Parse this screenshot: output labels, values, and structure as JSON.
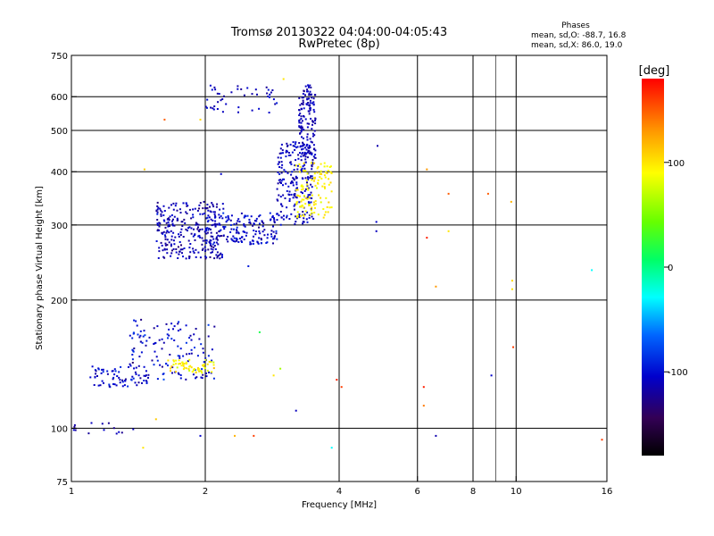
{
  "chart_data": {
    "type": "scatter",
    "title": "Tromsø 20130322 04:04:00-04:05:43",
    "subtitle": "RwPretec (8p)",
    "xlabel": "Frequency [MHz]",
    "ylabel": "Stationary phase Virtual Height [km]",
    "x_scale": "log",
    "y_scale": "log",
    "xlim": [
      1,
      16
    ],
    "ylim": [
      75,
      750
    ],
    "x_ticks": [
      1,
      2,
      4,
      6,
      8,
      10,
      16
    ],
    "x_tick_labels": [
      "1",
      "2",
      "4",
      "6",
      "8",
      "10",
      "16"
    ],
    "x_grid": [
      2,
      4,
      6,
      8,
      10
    ],
    "x_minor_grid": [
      9
    ],
    "y_ticks": [
      75,
      100,
      200,
      300,
      400,
      500,
      600,
      750
    ],
    "y_tick_labels": [
      "75",
      "100",
      "200",
      "300",
      "400",
      "500",
      "600",
      "750"
    ],
    "y_grid": [
      100,
      200,
      300,
      400,
      500,
      600
    ],
    "grid": true,
    "stats": {
      "heading": "Phases",
      "line_o": "mean, sd,O: -88.7, 16.8",
      "line_x": "mean, sd,X:  86.0, 19.0"
    },
    "colorbar": {
      "label": "[deg]",
      "range": [
        -180,
        180
      ],
      "ticks": [
        100,
        0,
        -100
      ],
      "tick_labels": [
        "100",
        "0",
        "-100"
      ]
    },
    "clusters": [
      {
        "x": [
          1.55,
          2.2
        ],
        "y": [
          250,
          340
        ],
        "n": 280,
        "phase": -110,
        "phase_sd": 18
      },
      {
        "x": [
          2.0,
          2.9
        ],
        "y": [
          270,
          320
        ],
        "n": 160,
        "phase": -100,
        "phase_sd": 18
      },
      {
        "x": [
          2.9,
          3.5
        ],
        "y": [
          300,
          470
        ],
        "n": 220,
        "phase": -105,
        "phase_sd": 15
      },
      {
        "x": [
          3.25,
          3.55
        ],
        "y": [
          430,
          640
        ],
        "n": 140,
        "phase": -108,
        "phase_sd": 12
      },
      {
        "x": [
          3.2,
          3.85
        ],
        "y": [
          310,
          420
        ],
        "n": 120,
        "phase": 95,
        "phase_sd": 15
      },
      {
        "x": [
          2.0,
          2.9
        ],
        "y": [
          550,
          640
        ],
        "n": 45,
        "phase": -105,
        "phase_sd": 15
      },
      {
        "x": [
          1.1,
          1.5
        ],
        "y": [
          125,
          140
        ],
        "n": 70,
        "phase": -100,
        "phase_sd": 20
      },
      {
        "x": [
          1.35,
          2.1
        ],
        "y": [
          130,
          180
        ],
        "n": 130,
        "phase": -100,
        "phase_sd": 25
      },
      {
        "x": [
          1.65,
          2.1
        ],
        "y": [
          135,
          145
        ],
        "n": 60,
        "phase": 95,
        "phase_sd": 20
      },
      {
        "x": [
          1.0,
          1.4
        ],
        "y": [
          97,
          103
        ],
        "n": 14,
        "phase": -110,
        "phase_sd": 15
      }
    ],
    "scattered_points": [
      {
        "x": 1.46,
        "y": 405,
        "phase": 110
      },
      {
        "x": 1.62,
        "y": 530,
        "phase": 150
      },
      {
        "x": 1.95,
        "y": 530,
        "phase": 105
      },
      {
        "x": 2.17,
        "y": 395,
        "phase": -100
      },
      {
        "x": 2.5,
        "y": 240,
        "phase": -90
      },
      {
        "x": 3.0,
        "y": 660,
        "phase": 100
      },
      {
        "x": 4.88,
        "y": 460,
        "phase": -110
      },
      {
        "x": 4.85,
        "y": 305,
        "phase": -100
      },
      {
        "x": 4.85,
        "y": 290,
        "phase": -105
      },
      {
        "x": 6.3,
        "y": 405,
        "phase": 130
      },
      {
        "x": 6.3,
        "y": 280,
        "phase": 170
      },
      {
        "x": 6.6,
        "y": 215,
        "phase": 130
      },
      {
        "x": 7.05,
        "y": 355,
        "phase": 150
      },
      {
        "x": 7.05,
        "y": 290,
        "phase": 100
      },
      {
        "x": 8.65,
        "y": 355,
        "phase": 150
      },
      {
        "x": 9.75,
        "y": 340,
        "phase": 120
      },
      {
        "x": 9.8,
        "y": 222,
        "phase": 105
      },
      {
        "x": 9.8,
        "y": 212,
        "phase": 100
      },
      {
        "x": 9.85,
        "y": 155,
        "phase": 160
      },
      {
        "x": 8.8,
        "y": 133,
        "phase": -100
      },
      {
        "x": 14.8,
        "y": 235,
        "phase": -30
      },
      {
        "x": 15.6,
        "y": 94,
        "phase": 160
      },
      {
        "x": 6.2,
        "y": 125,
        "phase": 170
      },
      {
        "x": 6.2,
        "y": 113,
        "phase": 140
      },
      {
        "x": 6.6,
        "y": 96,
        "phase": -110
      },
      {
        "x": 3.85,
        "y": 90,
        "phase": -30
      },
      {
        "x": 3.2,
        "y": 110,
        "phase": -105
      },
      {
        "x": 2.95,
        "y": 138,
        "phase": 60
      },
      {
        "x": 2.85,
        "y": 133,
        "phase": 100
      },
      {
        "x": 2.65,
        "y": 168,
        "phase": 10
      },
      {
        "x": 2.33,
        "y": 96,
        "phase": 120
      },
      {
        "x": 2.57,
        "y": 96,
        "phase": 160
      },
      {
        "x": 1.95,
        "y": 96,
        "phase": -100
      },
      {
        "x": 1.45,
        "y": 90,
        "phase": 100
      },
      {
        "x": 1.55,
        "y": 105,
        "phase": 110
      },
      {
        "x": 4.05,
        "y": 125,
        "phase": 160
      },
      {
        "x": 3.95,
        "y": 130,
        "phase": 170
      }
    ]
  }
}
